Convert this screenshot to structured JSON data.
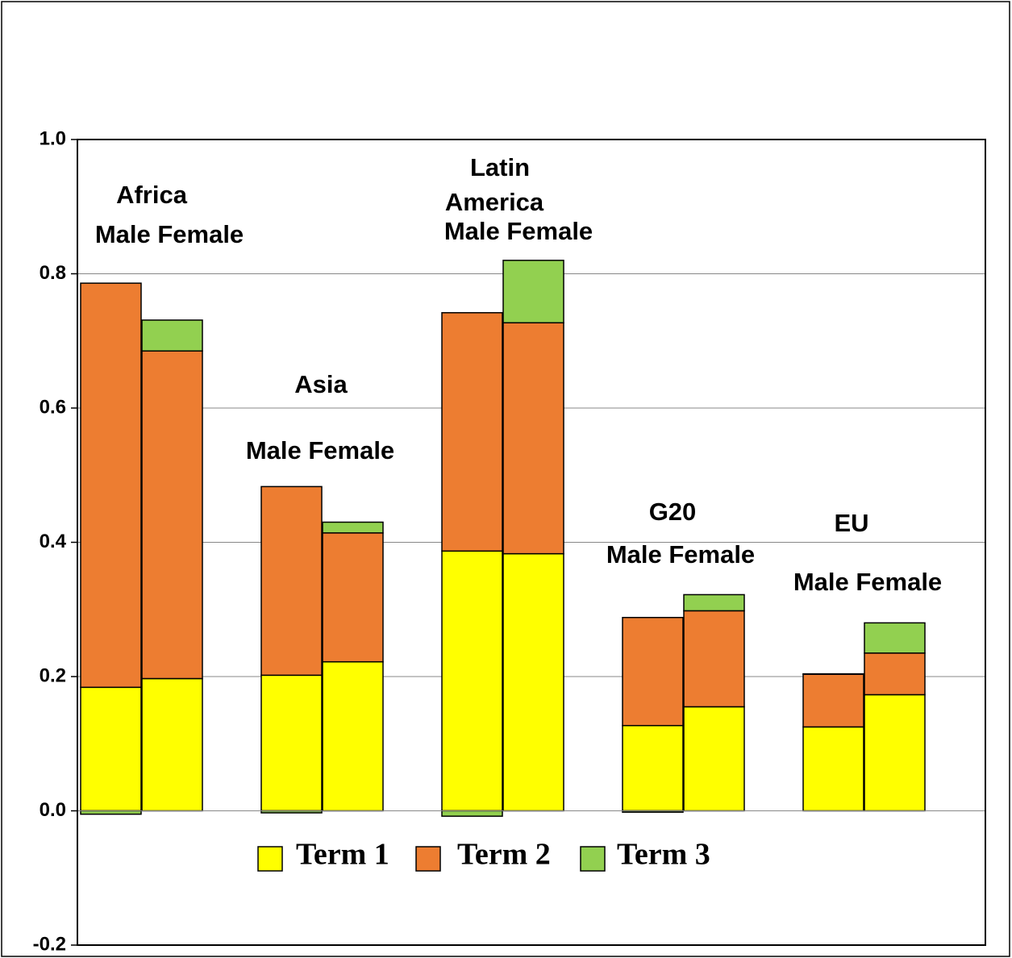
{
  "chart_data": {
    "type": "stacked-bar",
    "annotations": [
      "Africa",
      "Male Female",
      "Asia",
      "Male Female",
      "Latin",
      "America",
      "Male Female",
      "G20",
      "Male Female",
      "EU",
      "Male Female"
    ],
    "categories": [
      null,
      null,
      null,
      null,
      null,
      null,
      null,
      null,
      null,
      null
    ],
    "series": [
      {
        "name": "Term 1",
        "color": "#ffff00",
        "values": [
          0.184,
          0.197,
          0.202,
          0.222,
          0.387,
          0.383,
          0.127,
          0.155,
          0.125,
          0.173
        ]
      },
      {
        "name": "Term 2",
        "color": "#ed7d31",
        "values": [
          0.602,
          0.488,
          0.281,
          0.192,
          0.355,
          0.344,
          0.161,
          0.143,
          0.079,
          0.062
        ]
      },
      {
        "name": "Term 3",
        "color": "#92d050",
        "values": [
          -0.005,
          0.046,
          -0.003,
          0.016,
          -0.008,
          0.093,
          -0.002,
          0.024,
          0,
          0.045
        ]
      }
    ],
    "ylim": [
      -0.2,
      1
    ],
    "yticks": [
      {
        "value": -0.2,
        "label": "-0.2"
      },
      {
        "value": 0,
        "label": "0.0"
      },
      0.2,
      0.4,
      0.6,
      0.8,
      {
        "value": 1,
        "label": "1.0"
      }
    ],
    "grid": true
  }
}
